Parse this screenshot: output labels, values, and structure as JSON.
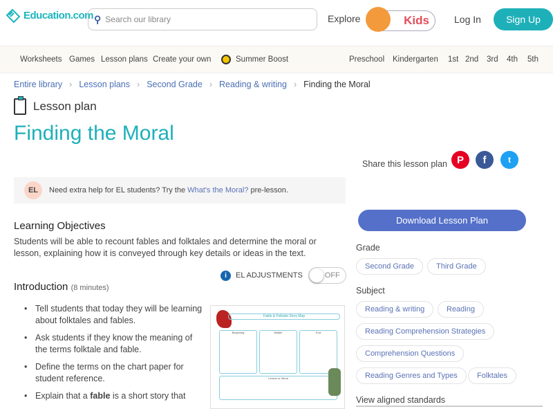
{
  "header": {
    "logo": "Education.com",
    "search_placeholder": "Search our library",
    "explore": "Explore",
    "kids": "Kids",
    "login": "Log In",
    "signup": "Sign Up"
  },
  "nav": {
    "left": [
      "Worksheets",
      "Games",
      "Lesson plans",
      "Create your own",
      "Summer Boost"
    ],
    "grades": [
      "Preschool",
      "Kindergarten",
      "1st",
      "2nd",
      "3rd",
      "4th",
      "5th"
    ]
  },
  "breadcrumb": [
    "Entire library",
    "Lesson plans",
    "Second Grade",
    "Reading & writing",
    "Finding the Moral"
  ],
  "page": {
    "type": "Lesson plan",
    "title": "Finding the Moral",
    "share": "Share this lesson plan"
  },
  "el_banner": {
    "badge": "EL",
    "text_before": "Need extra help for EL students? Try the ",
    "link": "What's the Moral?",
    "text_after": " pre-lesson."
  },
  "objectives": {
    "heading": "Learning Objectives",
    "text": "Students will be able to recount fables and folktales and determine the moral or lesson, explaining how it is conveyed through key details or ideas in the text."
  },
  "el_adjust": {
    "label": "EL ADJUSTMENTS",
    "state": "OFF"
  },
  "intro": {
    "heading": "Introduction",
    "minutes": "(8 minutes)",
    "bullets": [
      "Tell students that today they will be learning about folktales and fables.",
      "Ask students if they know the meaning of the terms folktale and fable.",
      "Define the terms on the chart paper for student reference."
    ],
    "last_before": "Explain that a ",
    "last_bold": "fable",
    "last_after": " is a short story that"
  },
  "worksheet": {
    "title": "Fable & Folktale Story Map",
    "cols": [
      "Beginning",
      "Middle",
      "End"
    ],
    "bottom": "Lesson or Moral"
  },
  "sidebar": {
    "download": "Download Lesson Plan",
    "grade_label": "Grade",
    "grades": [
      "Second Grade",
      "Third Grade"
    ],
    "subject_label": "Subject",
    "subjects": [
      "Reading & writing",
      "Reading",
      "Reading Comprehension Strategies",
      "Comprehension Questions",
      "Reading Genres and Types",
      "Folktales"
    ],
    "standards": "View aligned standards"
  },
  "colors": {
    "teal": "#1eb0b9",
    "link": "#4a6fb5",
    "download": "#5470c9",
    "pinterest": "#e60023",
    "facebook": "#3b5998",
    "twitter": "#1da1f2"
  }
}
